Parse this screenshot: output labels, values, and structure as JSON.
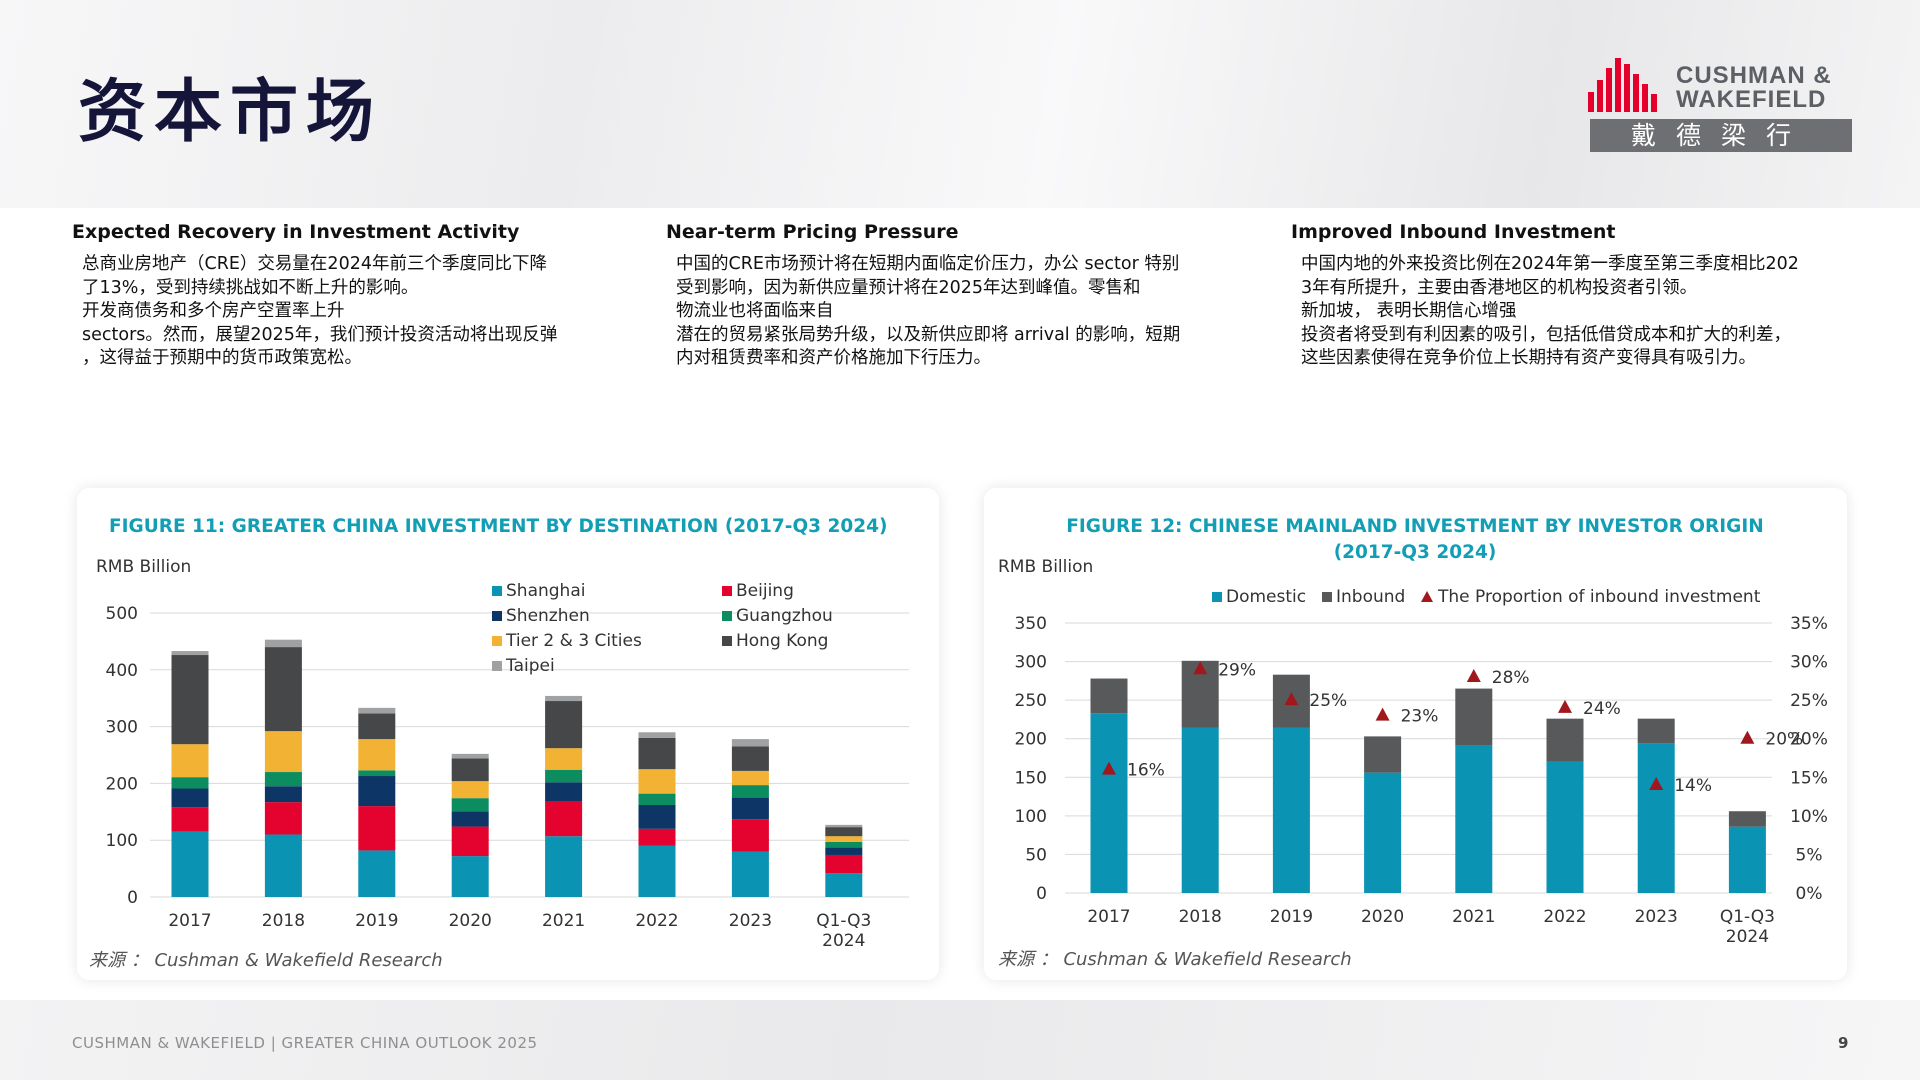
{
  "title": "资本市场",
  "logo": {
    "brand": "CUSHMAN &\nWAKEFIELD",
    "chinese": "戴德梁行",
    "bar_color": "#e4002b"
  },
  "columns": [
    {
      "heading": "Expected Recovery in Investment Activity",
      "body": "总商业房地产（CRE）交易量在2024年前三个季度同比下降\n了13%，受到持续挑战如不断上升的影响。\n开发商债务和多个房产空置率上升\n sectors。然而，展望2025年，我们预计投资活动将出现反弹\n，这得益于预期中的货币政策宽松。"
    },
    {
      "heading": "Near-term Pricing Pressure",
      "body": "中国的CRE市场预计将在短期内面临定价压力，办公 sector 特别\n受到影响，因为新供应量预计将在2025年达到峰值。零售和\n物流业也将面临来自\n潜在的贸易紧张局势升级，以及新供应即将 arrival 的影响，短期\n内对租赁费率和资产价格施加下行压力。"
    },
    {
      "heading": "Improved Inbound Investment",
      "body": "中国内地的外来投资比例在2024年第一季度至第三季度相比202\n3年有所提升，主要由香港地区的机构投资者引领。\n新加坡， 表明长期信心增强\n投资者将受到有利因素的吸引，包括低借贷成本和扩大的利差，\n这些因素使得在竞争价位上长期持有资产变得具有吸引力。"
    }
  ],
  "chart_data": [
    {
      "type": "bar",
      "stacked": true,
      "title": "FIGURE 11: GREATER CHINA INVESTMENT BY DESTINATION  (2017-Q3 2024)",
      "ylabel": "RMB Billion",
      "ylim": [
        0,
        500
      ],
      "yticks": [
        0,
        100,
        200,
        300,
        400,
        500
      ],
      "grid": true,
      "legend_position": "top-right",
      "categories": [
        "2017",
        "2018",
        "2019",
        "2020",
        "2021",
        "2022",
        "2023",
        "Q1-Q3\n2024"
      ],
      "series": [
        {
          "name": "Shanghai",
          "color": "#0a93b2",
          "values": [
            115,
            110,
            82,
            72,
            107,
            90,
            80,
            42
          ]
        },
        {
          "name": "Beijing",
          "color": "#e4032e",
          "values": [
            43,
            57,
            78,
            52,
            62,
            30,
            57,
            32
          ]
        },
        {
          "name": "Shenzhen",
          "color": "#0d3566",
          "values": [
            33,
            28,
            53,
            27,
            33,
            42,
            38,
            13
          ]
        },
        {
          "name": "Guangzhou",
          "color": "#0b8d5f",
          "values": [
            20,
            25,
            10,
            23,
            22,
            20,
            22,
            10
          ]
        },
        {
          "name": "Tier 2 & 3 Cities",
          "color": "#f2b233",
          "values": [
            58,
            72,
            55,
            30,
            38,
            43,
            25,
            10
          ]
        },
        {
          "name": "Hong Kong",
          "color": "#464748",
          "values": [
            157,
            148,
            45,
            40,
            83,
            55,
            43,
            16
          ]
        },
        {
          "name": "Taipei",
          "color": "#a0a1a3",
          "values": [
            7,
            13,
            10,
            8,
            9,
            10,
            13,
            4
          ]
        }
      ],
      "source": "来源 ： Cushman & Wakefield Research"
    },
    {
      "type": "bar",
      "stacked": true,
      "title": "FIGURE 12: CHINESE MAINLAND INVESTMENT BY INVESTOR ORIGIN\n(2017-Q3 2024)",
      "ylabel": "RMB Billion",
      "ylim": [
        0,
        350
      ],
      "yticks": [
        0,
        50,
        100,
        150,
        200,
        250,
        300,
        350
      ],
      "y2lim": [
        0,
        35
      ],
      "y2ticks": [
        "0%",
        "5%",
        "10%",
        "15%",
        "20%",
        "25%",
        "30%",
        "35%"
      ],
      "grid": true,
      "legend_position": "top",
      "categories": [
        "2017",
        "2018",
        "2019",
        "2020",
        "2021",
        "2022",
        "2023",
        "Q1-Q3\n2024"
      ],
      "series": [
        {
          "name": "Domestic",
          "color": "#0a93b2",
          "values": [
            233,
            214,
            214,
            156,
            191,
            170,
            194,
            86
          ]
        },
        {
          "name": "Inbound",
          "color": "#58595b",
          "values": [
            45,
            87,
            69,
            47,
            74,
            56,
            32,
            20
          ]
        }
      ],
      "line_series": {
        "name": "The Proportion of inbound investment",
        "color": "#a0181e",
        "marker": "triangle",
        "values": [
          16,
          29,
          25,
          23,
          28,
          24,
          14,
          20
        ],
        "labels": [
          "16%",
          "29%",
          "25%",
          "23%",
          "28%",
          "24%",
          "14%",
          "20%"
        ]
      },
      "source": "来源 ： Cushman & Wakefield Research"
    }
  ],
  "footer": {
    "text": "CUSHMAN & WAKEFIELD | GREATER CHINA OUTLOOK 2025",
    "page": "9"
  }
}
